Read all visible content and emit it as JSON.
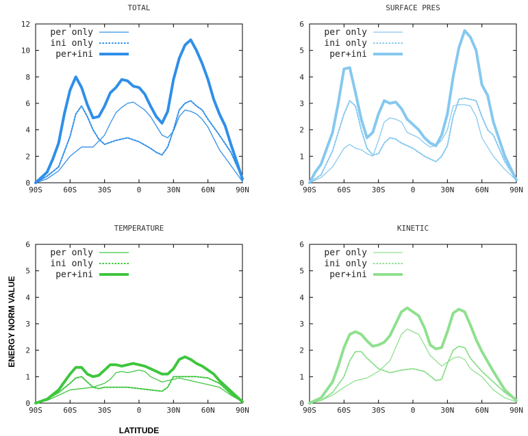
{
  "figure": {
    "ylabel": "ENERGY NORM VALUE",
    "xlabel": "LATITUDE"
  },
  "chart_data": [
    {
      "type": "line",
      "title": "TOTAL",
      "color": "#2f8fe8",
      "xlim": [
        -90,
        90
      ],
      "ylim": [
        0,
        12
      ],
      "yticks": [
        0,
        2,
        4,
        6,
        8,
        10,
        12
      ],
      "xticks": [
        "90S",
        "60S",
        "30S",
        "0",
        "30N",
        "60N",
        "90N"
      ],
      "series": [
        {
          "name": "per only",
          "style": "thin",
          "x": [
            -90,
            -80,
            -70,
            -60,
            -50,
            -45,
            -40,
            -30,
            -25,
            -20,
            -15,
            -10,
            -5,
            0,
            5,
            10,
            15,
            20,
            25,
            30,
            35,
            40,
            45,
            50,
            55,
            60,
            70,
            80,
            90
          ],
          "y": [
            0,
            0.3,
            0.9,
            2.0,
            2.7,
            2.7,
            2.7,
            3.6,
            4.5,
            5.3,
            5.7,
            6.0,
            6.1,
            5.8,
            5.5,
            5.0,
            4.3,
            3.6,
            3.4,
            3.9,
            5.0,
            5.5,
            5.4,
            5.2,
            4.8,
            4.2,
            2.5,
            1.3,
            0.1
          ]
        },
        {
          "name": "ini only",
          "style": "dotted",
          "x": [
            -90,
            -80,
            -70,
            -60,
            -55,
            -50,
            -45,
            -40,
            -35,
            -30,
            -20,
            -10,
            0,
            10,
            15,
            20,
            25,
            30,
            35,
            40,
            45,
            50,
            55,
            60,
            70,
            80,
            90
          ],
          "y": [
            0,
            0.5,
            1.2,
            3.5,
            5.2,
            5.8,
            5.0,
            4.0,
            3.3,
            2.9,
            3.2,
            3.4,
            3.1,
            2.6,
            2.3,
            2.1,
            2.7,
            4.0,
            5.5,
            6.0,
            6.2,
            5.8,
            5.5,
            4.8,
            3.6,
            2.3,
            0.3
          ]
        },
        {
          "name": "per+ini",
          "style": "thick",
          "x": [
            -90,
            -85,
            -80,
            -75,
            -70,
            -65,
            -60,
            -55,
            -50,
            -45,
            -40,
            -35,
            -30,
            -25,
            -20,
            -15,
            -10,
            -5,
            0,
            5,
            10,
            15,
            20,
            25,
            30,
            35,
            40,
            45,
            50,
            55,
            60,
            65,
            70,
            75,
            80,
            90
          ],
          "y": [
            0,
            0.4,
            0.8,
            1.8,
            3.0,
            5.2,
            7.0,
            8.0,
            7.2,
            5.9,
            4.9,
            5.0,
            5.8,
            6.8,
            7.2,
            7.8,
            7.7,
            7.3,
            7.2,
            6.7,
            5.8,
            5.0,
            4.5,
            5.4,
            7.8,
            9.4,
            10.4,
            10.8,
            10.0,
            9.0,
            7.8,
            6.3,
            5.2,
            4.3,
            2.9,
            0.3
          ]
        }
      ]
    },
    {
      "type": "line",
      "title": "SURFACE PRES",
      "color": "#86c8ef",
      "xlim": [
        -90,
        90
      ],
      "ylim": [
        0,
        6
      ],
      "yticks": [
        0,
        1,
        2,
        3,
        4,
        5,
        6
      ],
      "xticks": [
        "90S",
        "60S",
        "30S",
        "0",
        "30N",
        "60N",
        "90N"
      ],
      "series": [
        {
          "name": "per only",
          "style": "thin",
          "x": [
            -90,
            -80,
            -70,
            -60,
            -55,
            -50,
            -45,
            -40,
            -35,
            -30,
            -25,
            -20,
            -15,
            -10,
            -5,
            0,
            5,
            10,
            15,
            20,
            25,
            30,
            35,
            40,
            45,
            50,
            55,
            60,
            70,
            80,
            90
          ],
          "y": [
            0,
            0.2,
            0.6,
            1.3,
            1.45,
            1.3,
            1.25,
            1.1,
            1.0,
            1.6,
            2.3,
            2.45,
            2.4,
            2.3,
            1.9,
            1.8,
            1.7,
            1.5,
            1.35,
            1.4,
            1.6,
            2.0,
            2.9,
            2.95,
            2.95,
            2.9,
            2.5,
            1.7,
            1.0,
            0.5,
            0.1
          ]
        },
        {
          "name": "ini only",
          "style": "dotted",
          "x": [
            -90,
            -80,
            -70,
            -60,
            -55,
            -50,
            -45,
            -40,
            -35,
            -30,
            -25,
            -20,
            -15,
            -10,
            0,
            10,
            20,
            25,
            30,
            35,
            40,
            45,
            50,
            55,
            60,
            65,
            70,
            80,
            90
          ],
          "y": [
            0,
            0.3,
            1.2,
            2.6,
            3.1,
            2.9,
            2.0,
            1.3,
            1.05,
            1.1,
            1.5,
            1.7,
            1.65,
            1.5,
            1.3,
            1.0,
            0.8,
            1.0,
            1.4,
            2.5,
            3.15,
            3.2,
            3.15,
            3.1,
            2.5,
            2.0,
            1.8,
            0.8,
            0.1
          ]
        },
        {
          "name": "per+ini",
          "style": "thick",
          "x": [
            -90,
            -85,
            -80,
            -75,
            -70,
            -65,
            -60,
            -55,
            -50,
            -45,
            -40,
            -35,
            -30,
            -25,
            -20,
            -15,
            -10,
            -5,
            0,
            5,
            10,
            15,
            20,
            25,
            30,
            35,
            40,
            45,
            50,
            55,
            60,
            65,
            70,
            80,
            90
          ],
          "y": [
            0,
            0.4,
            0.7,
            1.3,
            1.9,
            3.0,
            4.3,
            4.35,
            3.4,
            2.4,
            1.7,
            1.9,
            2.6,
            3.1,
            3.0,
            3.05,
            2.8,
            2.4,
            2.2,
            2.0,
            1.7,
            1.5,
            1.4,
            1.8,
            2.6,
            4.0,
            5.1,
            5.75,
            5.5,
            5.0,
            3.7,
            3.3,
            2.3,
            1.0,
            0.1
          ]
        }
      ]
    },
    {
      "type": "line",
      "title": "TEMPERATURE",
      "color": "#3ec63e",
      "xlim": [
        -90,
        90
      ],
      "ylim": [
        0,
        6
      ],
      "yticks": [
        0,
        1,
        2,
        3,
        4,
        5,
        6
      ],
      "xticks": [
        "90S",
        "60S",
        "30S",
        "0",
        "30N",
        "60N",
        "90N"
      ],
      "series": [
        {
          "name": "per only",
          "style": "thin",
          "x": [
            -90,
            -80,
            -70,
            -60,
            -50,
            -40,
            -30,
            -25,
            -20,
            -15,
            -10,
            -5,
            0,
            5,
            10,
            15,
            20,
            25,
            30,
            35,
            40,
            45,
            50,
            60,
            70,
            80,
            90
          ],
          "y": [
            0,
            0.1,
            0.3,
            0.5,
            0.55,
            0.6,
            0.75,
            0.9,
            1.15,
            1.2,
            1.15,
            1.2,
            1.25,
            1.2,
            1.0,
            0.9,
            0.8,
            0.85,
            0.9,
            0.95,
            0.9,
            0.85,
            0.8,
            0.7,
            0.6,
            0.3,
            0.05
          ]
        },
        {
          "name": "ini only",
          "style": "dotted",
          "x": [
            -90,
            -80,
            -70,
            -60,
            -55,
            -50,
            -45,
            -40,
            -35,
            -30,
            -20,
            -10,
            0,
            10,
            20,
            25,
            30,
            35,
            40,
            45,
            50,
            60,
            70,
            80,
            90
          ],
          "y": [
            0,
            0.15,
            0.4,
            0.75,
            0.95,
            1.0,
            0.8,
            0.6,
            0.55,
            0.6,
            0.6,
            0.6,
            0.55,
            0.5,
            0.45,
            0.6,
            1.0,
            1.0,
            1.0,
            1.0,
            1.0,
            0.95,
            0.75,
            0.35,
            0.05
          ]
        },
        {
          "name": "per+ini",
          "style": "thick",
          "x": [
            -90,
            -80,
            -70,
            -65,
            -60,
            -55,
            -50,
            -45,
            -40,
            -35,
            -30,
            -25,
            -20,
            -15,
            -10,
            -5,
            0,
            5,
            10,
            15,
            20,
            25,
            30,
            35,
            40,
            45,
            50,
            55,
            60,
            65,
            70,
            80,
            90
          ],
          "y": [
            0,
            0.15,
            0.5,
            0.8,
            1.1,
            1.35,
            1.35,
            1.1,
            1.0,
            1.05,
            1.25,
            1.45,
            1.45,
            1.4,
            1.45,
            1.5,
            1.45,
            1.4,
            1.3,
            1.2,
            1.1,
            1.1,
            1.3,
            1.65,
            1.75,
            1.65,
            1.5,
            1.4,
            1.25,
            1.1,
            0.85,
            0.45,
            0.05
          ]
        }
      ]
    },
    {
      "type": "line",
      "title": "KINETIC",
      "color": "#8fe08f",
      "xlim": [
        -90,
        90
      ],
      "ylim": [
        0,
        6
      ],
      "yticks": [
        0,
        1,
        2,
        3,
        4,
        5,
        6
      ],
      "xticks": [
        "90S",
        "60S",
        "30S",
        "0",
        "30N",
        "60N",
        "90N"
      ],
      "series": [
        {
          "name": "per only",
          "style": "thin",
          "x": [
            -90,
            -80,
            -70,
            -60,
            -50,
            -40,
            -30,
            -20,
            -15,
            -10,
            -5,
            0,
            5,
            10,
            15,
            20,
            25,
            30,
            35,
            40,
            45,
            50,
            60,
            70,
            80,
            90
          ],
          "y": [
            0,
            0.1,
            0.3,
            0.6,
            0.85,
            0.95,
            1.2,
            1.6,
            2.1,
            2.6,
            2.8,
            2.7,
            2.6,
            2.2,
            1.8,
            1.6,
            1.4,
            1.55,
            1.7,
            1.75,
            1.65,
            1.3,
            1.0,
            0.5,
            0.2,
            0.05
          ]
        },
        {
          "name": "ini only",
          "style": "dotted",
          "x": [
            -90,
            -80,
            -70,
            -60,
            -55,
            -50,
            -45,
            -40,
            -35,
            -30,
            -20,
            -10,
            0,
            10,
            20,
            25,
            30,
            35,
            40,
            45,
            50,
            60,
            70,
            80,
            90
          ],
          "y": [
            0,
            0.1,
            0.4,
            1.0,
            1.6,
            1.95,
            1.95,
            1.7,
            1.5,
            1.3,
            1.15,
            1.25,
            1.3,
            1.2,
            0.85,
            0.9,
            1.5,
            2.0,
            2.15,
            2.1,
            1.7,
            1.2,
            0.8,
            0.4,
            0.1
          ]
        },
        {
          "name": "per+ini",
          "style": "thick",
          "x": [
            -90,
            -80,
            -70,
            -65,
            -60,
            -55,
            -50,
            -45,
            -40,
            -35,
            -30,
            -25,
            -20,
            -15,
            -10,
            -5,
            0,
            5,
            10,
            15,
            20,
            25,
            30,
            35,
            40,
            45,
            50,
            55,
            60,
            70,
            80,
            90
          ],
          "y": [
            0,
            0.2,
            0.8,
            1.4,
            2.1,
            2.6,
            2.7,
            2.6,
            2.35,
            2.15,
            2.2,
            2.3,
            2.55,
            3.0,
            3.45,
            3.6,
            3.45,
            3.3,
            2.85,
            2.2,
            2.05,
            2.1,
            2.7,
            3.4,
            3.55,
            3.45,
            2.95,
            2.4,
            1.95,
            1.2,
            0.5,
            0.1
          ]
        }
      ]
    }
  ]
}
